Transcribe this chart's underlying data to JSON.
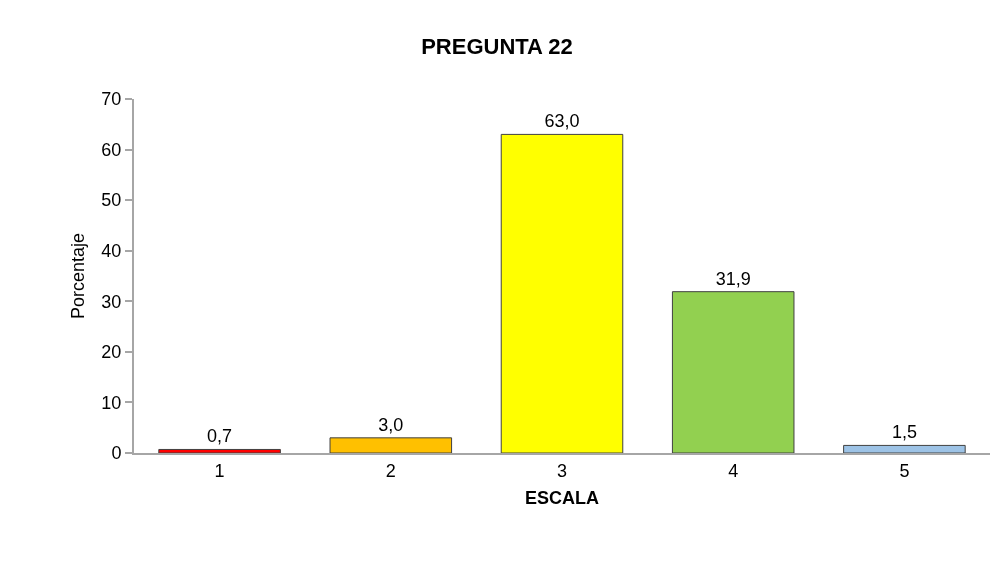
{
  "chart_data": {
    "type": "bar",
    "title": "PREGUNTA 22",
    "xlabel": "ESCALA",
    "ylabel": "Porcentaje",
    "categories": [
      "1",
      "2",
      "3",
      "4",
      "5"
    ],
    "values": [
      0.7,
      3.0,
      63.0,
      31.9,
      1.5
    ],
    "colors": [
      "#ff0000",
      "#ffc000",
      "#ffff00",
      "#92d050",
      "#9dc3e6"
    ],
    "value_labels": [
      "0,7",
      "3,0",
      "63,0",
      "31,9",
      "1,5"
    ],
    "ylim": [
      0,
      70
    ],
    "yticks": [
      0,
      10,
      20,
      30,
      40,
      50,
      60,
      70
    ],
    "grid": false
  }
}
